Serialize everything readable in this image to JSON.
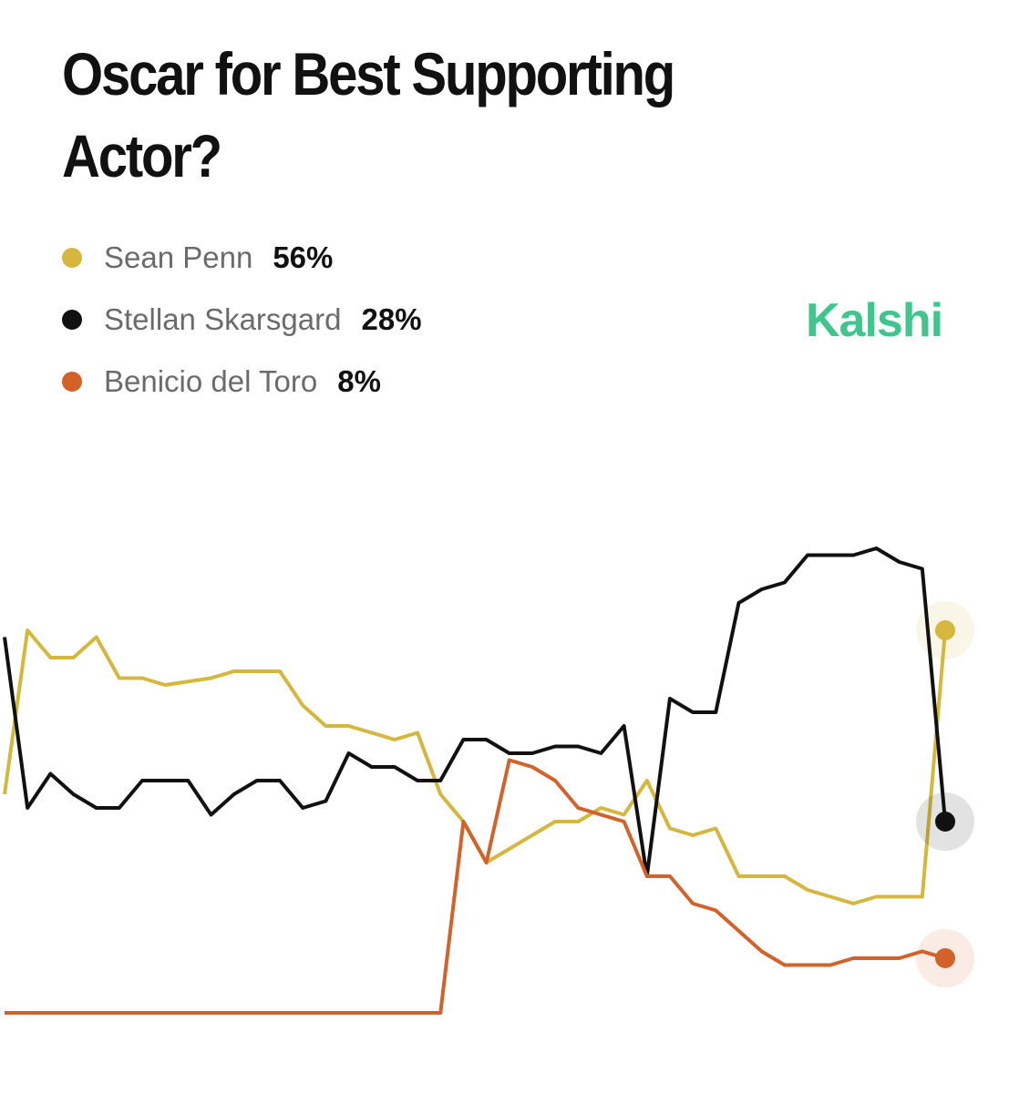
{
  "chart_data": {
    "type": "line",
    "title": "Oscar for Best Supporting Actor?",
    "brand": "Kalshi",
    "categories": [
      null,
      null,
      null,
      null,
      null,
      null,
      null,
      null,
      null,
      null,
      null,
      null,
      null,
      null,
      null,
      null,
      null,
      null,
      null,
      null,
      null,
      null,
      null,
      null,
      null,
      null,
      null,
      null,
      null,
      null,
      null,
      null,
      null,
      null,
      null,
      null,
      null,
      null,
      null,
      null,
      null,
      null
    ],
    "ylim": [
      0,
      70
    ],
    "series": [
      {
        "name": "Sean Penn",
        "color": "#d4b73c",
        "values": [
          32,
          56,
          52,
          52,
          55,
          49,
          49,
          48,
          48.5,
          49,
          50,
          50,
          50,
          45,
          42,
          42,
          41,
          40,
          41,
          32,
          28,
          22,
          24,
          26,
          28,
          28,
          30,
          29,
          34,
          27,
          26,
          27,
          20,
          20,
          20,
          18,
          17,
          16,
          17,
          17,
          17,
          56
        ],
        "value_labels": [
          null,
          null,
          null,
          null,
          null,
          null,
          null,
          null,
          null,
          null,
          null,
          null,
          null,
          null,
          null,
          null,
          null,
          null,
          null,
          null,
          null,
          null,
          null,
          null,
          null,
          null,
          null,
          null,
          null,
          null,
          null,
          null,
          null,
          null,
          null,
          null,
          null,
          null,
          null,
          null,
          null,
          "56%"
        ]
      },
      {
        "name": "Stellan Skarsgard",
        "color": "#111111",
        "values": [
          55,
          30,
          35,
          32,
          30,
          30,
          34,
          34,
          34,
          29,
          32,
          34,
          34,
          30,
          31,
          38,
          36,
          36,
          34,
          34,
          40,
          40,
          38,
          38,
          39,
          39,
          38,
          42,
          20,
          46,
          44,
          44,
          60,
          62,
          63,
          67,
          67,
          67,
          68,
          66,
          65,
          28
        ],
        "value_labels": [
          null,
          null,
          null,
          null,
          null,
          null,
          null,
          null,
          null,
          null,
          null,
          null,
          null,
          null,
          null,
          null,
          null,
          null,
          null,
          null,
          null,
          null,
          null,
          null,
          null,
          null,
          null,
          null,
          null,
          null,
          null,
          null,
          null,
          null,
          null,
          null,
          null,
          null,
          null,
          null,
          null,
          "28%"
        ]
      },
      {
        "name": "Benicio del Toro",
        "color": "#d2622a",
        "values": [
          0,
          0,
          0,
          0,
          0,
          0,
          0,
          0,
          0,
          0,
          0,
          0,
          0,
          0,
          0,
          0,
          0,
          0,
          0,
          0,
          28,
          22,
          37,
          36,
          34,
          30,
          29,
          28,
          20,
          20,
          16,
          15,
          12,
          9,
          7,
          7,
          7,
          8,
          8,
          8,
          9,
          8
        ],
        "value_labels": [
          null,
          null,
          null,
          null,
          null,
          null,
          null,
          null,
          null,
          null,
          null,
          null,
          null,
          null,
          null,
          null,
          null,
          null,
          null,
          null,
          null,
          null,
          null,
          null,
          null,
          null,
          null,
          null,
          null,
          null,
          null,
          null,
          null,
          null,
          null,
          null,
          null,
          null,
          null,
          null,
          null,
          "8%"
        ]
      }
    ]
  }
}
